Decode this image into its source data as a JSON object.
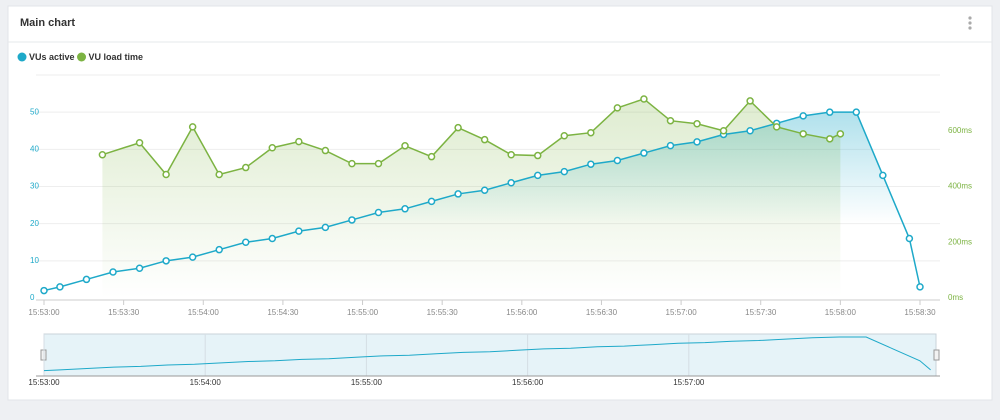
{
  "chart_data": {
    "type": "line",
    "title": "Main chart",
    "xlim": [
      "15:53:00",
      "15:58:30"
    ],
    "xticks": [
      "15:53:00",
      "15:53:30",
      "15:54:00",
      "15:54:30",
      "15:55:00",
      "15:55:30",
      "15:56:00",
      "15:56:30",
      "15:57:00",
      "15:57:30",
      "15:58:00",
      "15:58:30"
    ],
    "ylim": [
      0,
      60
    ],
    "yticks": [
      0,
      10,
      20,
      30,
      40,
      50
    ],
    "y2lim": [
      0,
      800
    ],
    "y2ticks": [
      {
        "value": 0,
        "label": "0ms"
      },
      {
        "value": 200,
        "label": "200ms"
      },
      {
        "value": 400,
        "label": "400ms"
      },
      {
        "value": 600,
        "label": "600ms"
      }
    ],
    "grid": true,
    "series": [
      {
        "name": "VUs active",
        "color": "#1ea9c9",
        "x": [
          "15:53:00",
          "15:53:06",
          "15:53:16",
          "15:53:26",
          "15:53:36",
          "15:53:46",
          "15:53:56",
          "15:54:06",
          "15:54:16",
          "15:54:26",
          "15:54:36",
          "15:54:46",
          "15:54:56",
          "15:55:06",
          "15:55:16",
          "15:55:26",
          "15:55:36",
          "15:55:46",
          "15:55:56",
          "15:56:06",
          "15:56:16",
          "15:56:26",
          "15:56:36",
          "15:56:46",
          "15:56:56",
          "15:57:06",
          "15:57:16",
          "15:57:26",
          "15:57:36",
          "15:57:46",
          "15:57:56",
          "15:58:06",
          "15:58:16",
          "15:58:26",
          "15:58:30"
        ],
        "values": [
          2,
          3,
          5,
          7,
          8,
          10,
          11,
          13,
          15,
          16,
          18,
          19,
          21,
          23,
          24,
          26,
          28,
          29,
          31,
          33,
          34,
          36,
          37,
          39,
          41,
          42,
          44,
          45,
          47,
          49,
          50,
          50,
          33,
          16,
          3
        ]
      },
      {
        "name": "VU load time",
        "color": "#7cb342",
        "axis": "y2",
        "x": [
          "15:53:22",
          "15:53:36",
          "15:53:46",
          "15:53:56",
          "15:54:06",
          "15:54:16",
          "15:54:26",
          "15:54:36",
          "15:54:46",
          "15:54:56",
          "15:55:06",
          "15:55:16",
          "15:55:26",
          "15:55:36",
          "15:55:46",
          "15:55:56",
          "15:56:06",
          "15:56:16",
          "15:56:26",
          "15:56:36",
          "15:56:46",
          "15:56:56",
          "15:57:06",
          "15:57:16",
          "15:57:26",
          "15:57:36",
          "15:57:46",
          "15:57:56",
          "15:58:00"
        ],
        "values": [
          514,
          557,
          443,
          614,
          443,
          468,
          539,
          561,
          529,
          482,
          482,
          546,
          507,
          611,
          568,
          514,
          511,
          582,
          593,
          682,
          714,
          636,
          625,
          600,
          707,
          614,
          589,
          571,
          589
        ]
      }
    ],
    "navigator": {
      "xlim": [
        "15:53:00",
        "15:58:32"
      ],
      "xticks": [
        "15:53:00",
        "15:54:00",
        "15:55:00",
        "15:56:00",
        "15:57:00"
      ]
    }
  }
}
